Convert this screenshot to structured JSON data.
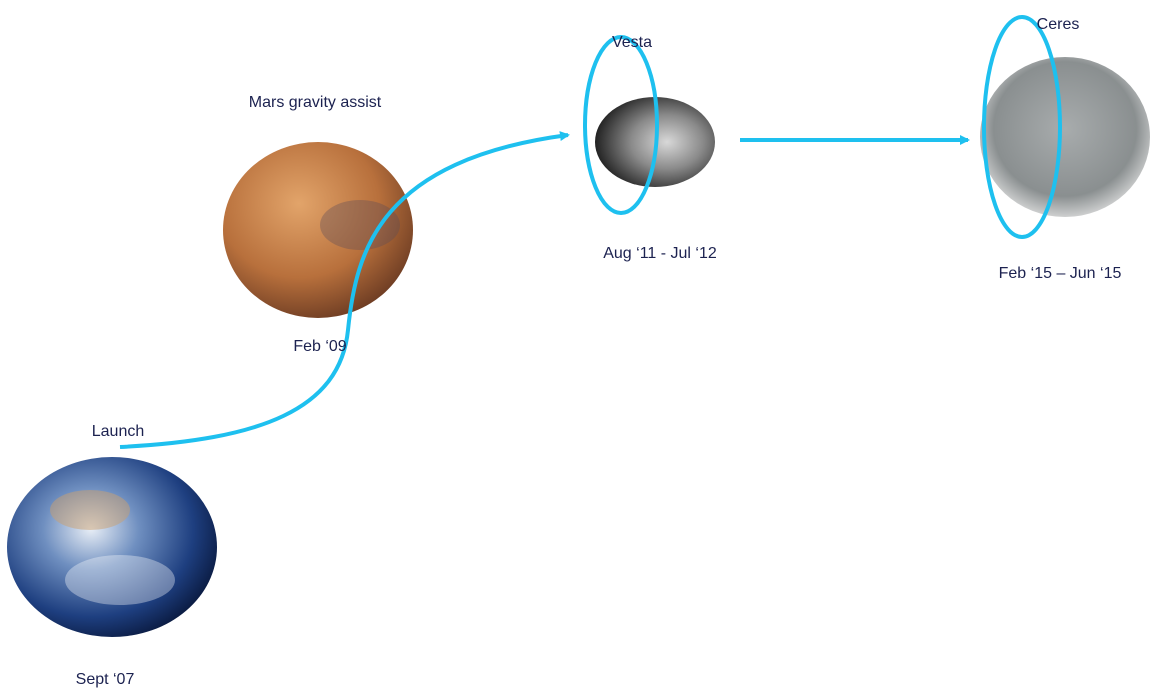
{
  "nodes": [
    {
      "label": "Launch",
      "date": "Sept ‘07"
    },
    {
      "label": "Mars gravity assist",
      "date": "Feb ‘09"
    },
    {
      "label": "Vesta",
      "date": "Aug ‘11 - Jul ‘12"
    },
    {
      "label": "Ceres",
      "date": "Feb ‘15 – Jun ‘15"
    }
  ]
}
